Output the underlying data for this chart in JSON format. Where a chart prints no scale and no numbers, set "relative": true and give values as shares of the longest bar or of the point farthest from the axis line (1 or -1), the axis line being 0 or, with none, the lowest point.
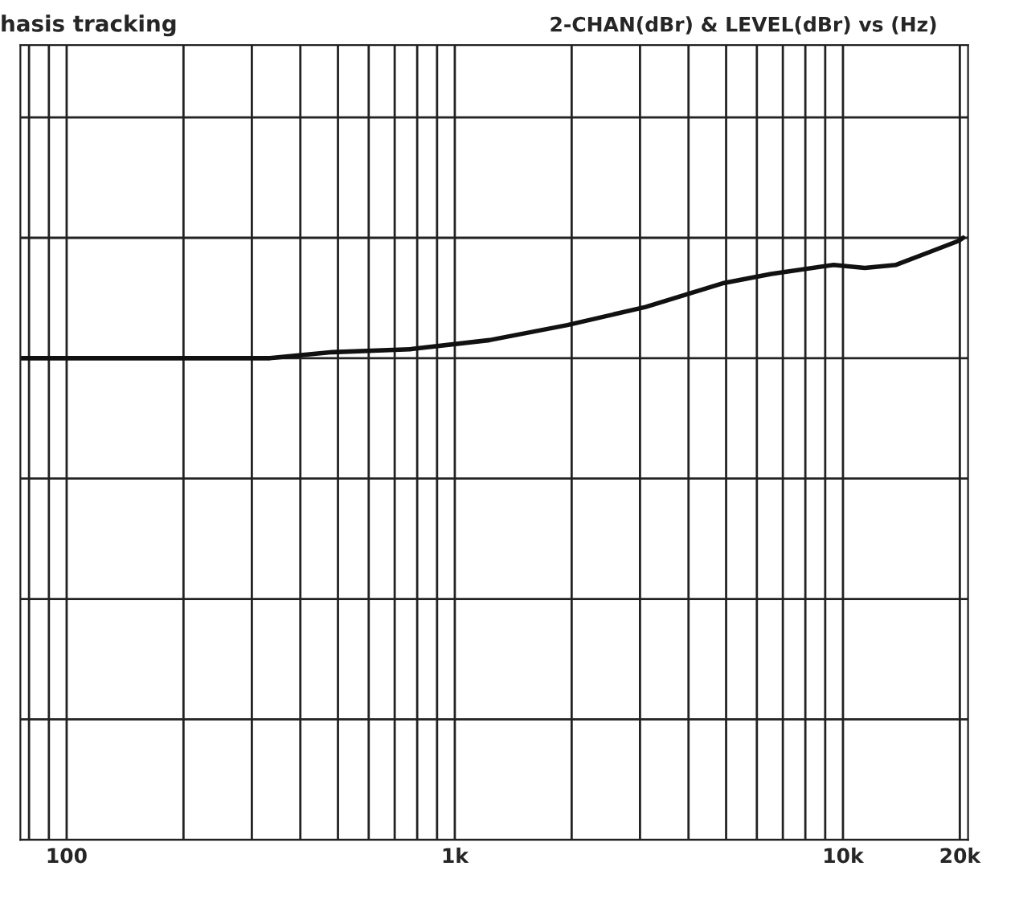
{
  "chart_data": {
    "type": "line",
    "title": "hasis tracking",
    "subtitle": "2-CHAN(dBr) & LEVEL(dBr) vs (Hz)",
    "relative": true,
    "log": "x",
    "x": [
      76,
      191,
      334,
      484,
      771,
      1228,
      1950,
      3100,
      4940,
      6530,
      9460,
      11380,
      13700,
      16500,
      19870,
      20400
    ],
    "series": [
      {
        "color": "#111111",
        "values": [
          0.8,
          0.8,
          0.8,
          0.81,
          0.815,
          0.83,
          0.855,
          0.885,
          0.925,
          0.94,
          0.955,
          0.95,
          0.955,
          0.975,
          0.995,
          1.0
        ]
      }
    ],
    "xlim": [
      76,
      21000
    ],
    "xticks": [
      {
        "value": 100,
        "label": "100"
      },
      {
        "value": 1000,
        "label": "1k"
      },
      {
        "value": 10000,
        "label": "10k"
      },
      {
        "value": 20000,
        "label": "20k"
      }
    ],
    "grid": true,
    "legend": false,
    "marker": "none",
    "line_style": "solid"
  }
}
